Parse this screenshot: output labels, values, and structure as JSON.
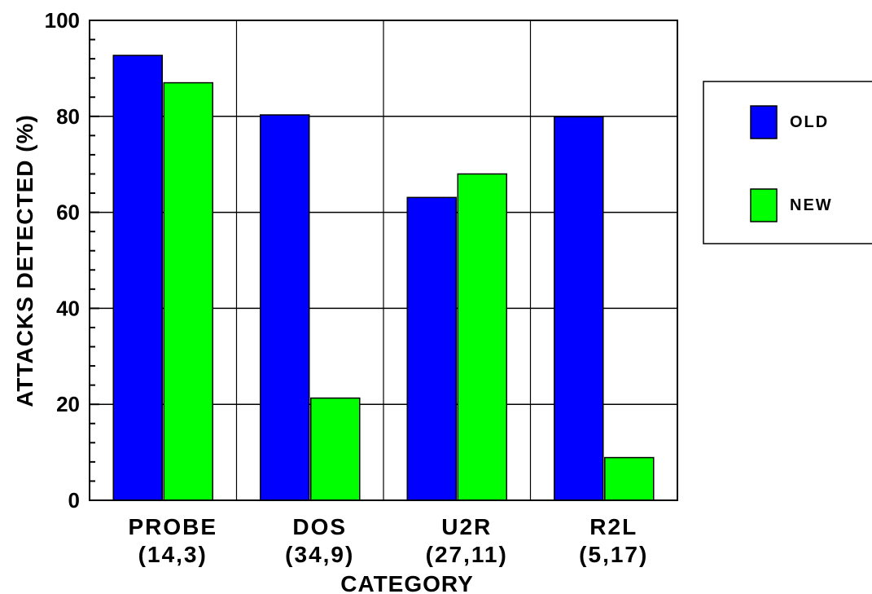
{
  "chart_data": {
    "type": "bar",
    "xlabel": "CATEGORY",
    "ylabel": "ATTACKS DETECTED (%)",
    "ylim": [
      0,
      100
    ],
    "yticks": [
      0,
      20,
      40,
      60,
      80,
      100
    ],
    "grid": true,
    "legend_position": "right",
    "categories": [
      {
        "name": "PROBE",
        "sub": "(14,3)"
      },
      {
        "name": "DOS",
        "sub": "(34,9)"
      },
      {
        "name": "U2R",
        "sub": "(27,11)"
      },
      {
        "name": "R2L",
        "sub": "(5,17)"
      }
    ],
    "series": [
      {
        "name": "OLD",
        "color": "#0000ff",
        "values": [
          92.7,
          80.3,
          63.1,
          79.9
        ]
      },
      {
        "name": "NEW",
        "color": "#00ff00",
        "values": [
          87.0,
          21.3,
          68.0,
          8.9
        ]
      }
    ]
  }
}
